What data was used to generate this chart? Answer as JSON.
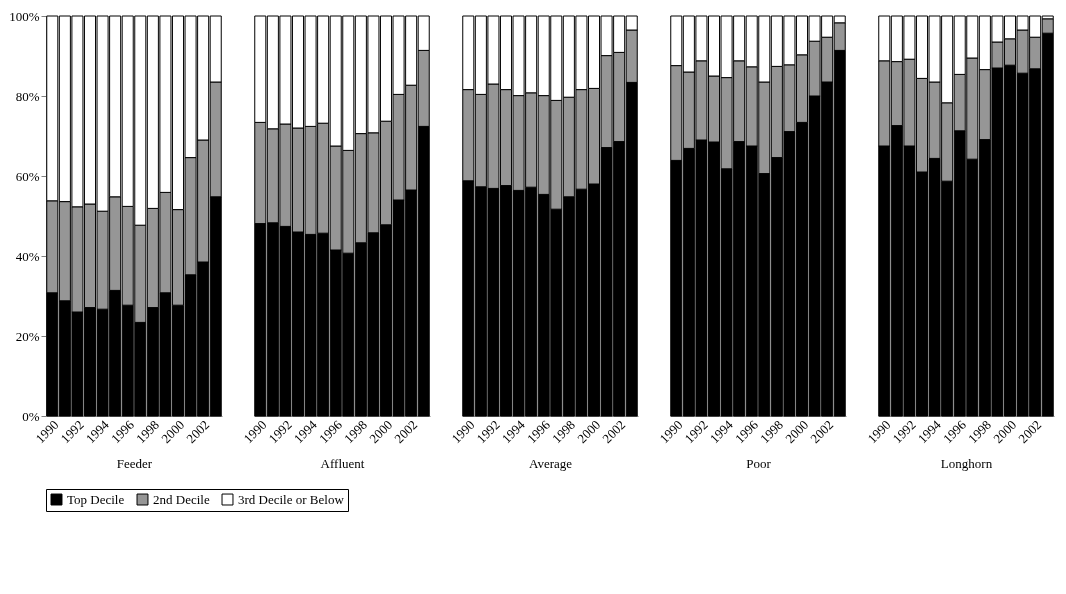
{
  "chart_data": [
    {
      "type": "bar",
      "stacked": true,
      "xlabel": "Feeder",
      "categories": [
        "1990",
        null,
        "1992",
        null,
        "1994",
        null,
        "1996",
        null,
        "1998",
        null,
        "2000",
        null,
        "2002",
        null
      ],
      "ylim": [
        0,
        100
      ],
      "yticks": [
        {
          "value": 0,
          "label": "0%"
        },
        {
          "value": 20,
          "label": "20%"
        },
        {
          "value": 40,
          "label": "40%"
        },
        {
          "value": 60,
          "label": "60%"
        },
        {
          "value": 80,
          "label": "80%"
        },
        {
          "value": 100,
          "label": "100%"
        }
      ],
      "legend": "bottom",
      "series": [
        {
          "name": "Top Decile",
          "color": "#000000",
          "values": [
            30.8,
            28.8,
            26.0,
            27.1,
            26.7,
            31.4,
            27.7,
            23.4,
            27.1,
            30.8,
            27.7,
            35.3,
            38.5,
            54.8
          ]
        },
        {
          "name": "2nd Decile",
          "color": "#969696",
          "values": [
            23.0,
            24.8,
            26.3,
            25.9,
            24.5,
            23.4,
            24.7,
            24.3,
            24.8,
            25.1,
            23.9,
            29.3,
            30.5,
            28.7
          ]
        },
        {
          "name": "3rd Decile or Below",
          "color": "#ffffff",
          "values": [
            46.2,
            46.4,
            47.7,
            47.0,
            48.8,
            45.2,
            47.6,
            52.3,
            48.1,
            44.1,
            48.4,
            35.4,
            31.0,
            16.5
          ]
        }
      ]
    },
    {
      "type": "bar",
      "stacked": true,
      "xlabel": "Affluent",
      "tick_labels": "x",
      "categories": [
        "1990",
        null,
        "1992",
        null,
        "1994",
        null,
        "1996",
        null,
        "1998",
        null,
        "2000",
        null,
        "2002",
        null
      ],
      "ylim": [
        0,
        100
      ],
      "legend": "bottom",
      "series": [
        {
          "name": "Top Decile",
          "color": "#000000",
          "values": [
            48.1,
            48.3,
            47.4,
            46.0,
            45.4,
            45.7,
            41.5,
            40.7,
            43.3,
            45.8,
            47.8,
            54.0,
            56.5,
            72.4
          ]
        },
        {
          "name": "2nd Decile",
          "color": "#969696",
          "values": [
            25.3,
            23.5,
            25.6,
            26.0,
            27.0,
            27.5,
            26.0,
            25.7,
            27.3,
            25.0,
            25.9,
            26.4,
            26.2,
            19.0
          ]
        },
        {
          "name": "3rd Decile or Below",
          "color": "#ffffff",
          "values": [
            26.6,
            28.2,
            27.0,
            28.0,
            27.6,
            26.8,
            32.5,
            33.6,
            29.4,
            29.2,
            26.3,
            19.6,
            17.3,
            8.6
          ]
        }
      ]
    },
    {
      "type": "bar",
      "stacked": true,
      "xlabel": "Average",
      "tick_labels": "x",
      "categories": [
        "1990",
        null,
        "1992",
        null,
        "1994",
        null,
        "1996",
        null,
        "1998",
        null,
        "2000",
        null,
        "2002",
        null
      ],
      "ylim": [
        0,
        100
      ],
      "legend": "bottom",
      "series": [
        {
          "name": "Top Decile",
          "color": "#000000",
          "values": [
            58.8,
            57.3,
            56.9,
            57.6,
            56.4,
            57.2,
            55.4,
            51.7,
            54.8,
            56.7,
            58.0,
            67.1,
            68.6,
            83.4
          ]
        },
        {
          "name": "2nd Decile",
          "color": "#969696",
          "values": [
            22.8,
            23.1,
            26.1,
            24.0,
            23.7,
            23.6,
            24.7,
            27.2,
            24.9,
            24.9,
            23.9,
            23.0,
            22.3,
            13.1
          ]
        },
        {
          "name": "3rd Decile or Below",
          "color": "#ffffff",
          "values": [
            18.4,
            19.6,
            17.0,
            18.4,
            19.9,
            19.2,
            19.9,
            21.1,
            20.3,
            18.4,
            18.1,
            9.9,
            9.1,
            3.5
          ]
        }
      ]
    },
    {
      "type": "bar",
      "stacked": true,
      "xlabel": "Poor",
      "tick_labels": "x",
      "categories": [
        "1990",
        null,
        "1992",
        null,
        "1994",
        null,
        "1996",
        null,
        "1998",
        null,
        "2000",
        null,
        "2002",
        null
      ],
      "ylim": [
        0,
        100
      ],
      "legend": "bottom",
      "series": [
        {
          "name": "Top Decile",
          "color": "#000000",
          "values": [
            63.9,
            66.9,
            69.0,
            68.5,
            61.8,
            68.6,
            67.5,
            60.6,
            64.6,
            71.1,
            73.4,
            80.0,
            83.5,
            91.4
          ]
        },
        {
          "name": "2nd Decile",
          "color": "#969696",
          "values": [
            23.7,
            19.1,
            19.8,
            16.5,
            22.8,
            20.2,
            19.8,
            22.9,
            22.8,
            16.7,
            16.9,
            13.7,
            11.2,
            6.9
          ]
        },
        {
          "name": "3rd Decile or Below",
          "color": "#ffffff",
          "values": [
            12.4,
            14.0,
            11.2,
            15.0,
            15.4,
            11.2,
            12.7,
            16.5,
            12.6,
            12.2,
            9.7,
            6.3,
            5.3,
            1.7
          ]
        }
      ]
    },
    {
      "type": "bar",
      "stacked": true,
      "xlabel": "Longhorn",
      "tick_labels": "x",
      "categories": [
        "1990",
        null,
        "1992",
        null,
        "1994",
        null,
        "1996",
        null,
        "1998",
        null,
        "2000",
        null,
        "2002",
        null
      ],
      "ylim": [
        0,
        100
      ],
      "legend": "bottom",
      "series": [
        {
          "name": "Top Decile",
          "color": "#000000",
          "values": [
            67.5,
            72.6,
            67.5,
            61.0,
            64.4,
            58.7,
            71.3,
            64.2,
            69.1,
            87.0,
            87.7,
            85.7,
            86.8,
            95.7
          ]
        },
        {
          "name": "2nd Decile",
          "color": "#969696",
          "values": [
            21.3,
            16.0,
            21.7,
            23.4,
            19.1,
            19.6,
            14.1,
            25.3,
            17.5,
            6.5,
            6.6,
            10.8,
            7.9,
            3.6
          ]
        },
        {
          "name": "3rd Decile or Below",
          "color": "#ffffff",
          "values": [
            11.2,
            11.4,
            10.8,
            15.6,
            16.5,
            21.7,
            14.6,
            10.5,
            13.4,
            6.5,
            5.7,
            3.5,
            5.3,
            0.7
          ]
        }
      ]
    }
  ]
}
